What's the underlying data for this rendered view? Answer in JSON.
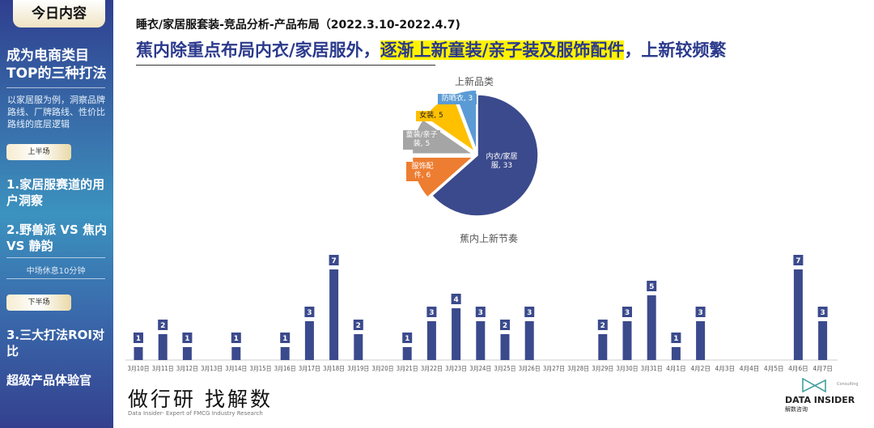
{
  "sidebar": {
    "header": "今日内容",
    "title": "成为电商类目TOP的三种打法",
    "desc": "以家居服为例，洞察品牌路线、厂牌路线、性价比路线的底层逻辑",
    "first_half": "上半场",
    "item1": "1.家居服赛道的用户洞察",
    "item2": "2.野兽派 VS 焦内 VS 静韵",
    "break": "中场休息10分钟",
    "second_half": "下半场",
    "item3": "3.三大打法ROI对比",
    "item4": "超级产品体验官"
  },
  "header": {
    "title": "睡衣/家居服套装-竞品分析-产品布局（2022.3.10-2022.4.7)",
    "headline_a": "蕉内除重点布局内衣/家居服外，",
    "headline_b": "逐渐上新童装/亲子装及服饰配件",
    "headline_c": "，上新较频繁"
  },
  "chart_data": [
    {
      "type": "pie",
      "title": "上新品类",
      "slices": [
        {
          "label": "内衣/家居服",
          "value": 33,
          "color": "#3b4a8c"
        },
        {
          "label": "服饰配件",
          "value": 6,
          "color": "#ed7d31"
        },
        {
          "label": "童装/亲子装",
          "value": 5,
          "color": "#a5a5a5"
        },
        {
          "label": "女装",
          "value": 5,
          "color": "#ffc000"
        },
        {
          "label": "防晒衣",
          "value": 3,
          "color": "#5b9bd5"
        }
      ]
    },
    {
      "type": "bar",
      "title": "蕉内上新节奏",
      "color": "#3b4a8c",
      "grid": false,
      "categories": [
        "3月10日",
        "3月11日",
        "3月12日",
        "3月13日",
        "3月14日",
        "3月15日",
        "3月16日",
        "3月17日",
        "3月18日",
        "3月19日",
        "3月20日",
        "3月21日",
        "3月22日",
        "3月23日",
        "3月24日",
        "3月25日",
        "3月26日",
        "3月27日",
        "3月28日",
        "3月29日",
        "3月30日",
        "3月31日",
        "4月1日",
        "4月2日",
        "4月3日",
        "4月4日",
        "4月5日",
        "4月6日",
        "4月7日"
      ],
      "values": [
        1,
        2,
        1,
        0,
        1,
        0,
        1,
        3,
        7,
        2,
        0,
        1,
        3,
        4,
        3,
        2,
        3,
        0,
        0,
        2,
        3,
        5,
        1,
        3,
        0,
        0,
        0,
        7,
        3
      ]
    }
  ],
  "footer": {
    "slogan": "做行研 找解数",
    "tagline": "Data Insider- Expert of FMCG Industry Research",
    "logo_en": "DATA INSIDER",
    "logo_cn": "解数咨询",
    "logo_small": "Consulting"
  }
}
